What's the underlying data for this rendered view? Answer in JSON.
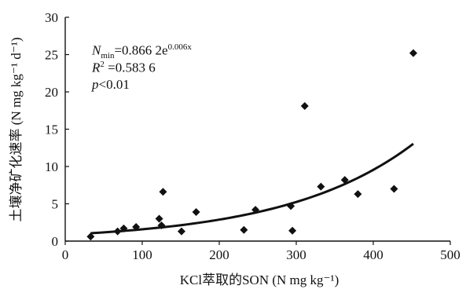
{
  "chart_data": {
    "type": "scatter",
    "title": "",
    "xlabel": "KCl萃取的SON (N mg kg⁻¹)",
    "ylabel": "土壤净矿化速率 (N mg kg⁻¹ d⁻¹)",
    "xlim": [
      0,
      500
    ],
    "ylim": [
      0,
      30
    ],
    "x_ticks": [
      "0",
      "100",
      "200",
      "300",
      "400",
      "500"
    ],
    "y_ticks": [
      "0",
      "5",
      "10",
      "15",
      "20",
      "25",
      "30"
    ],
    "grid": false,
    "legend": "none",
    "points": [
      {
        "x": 33,
        "y": 0.6
      },
      {
        "x": 68,
        "y": 1.3
      },
      {
        "x": 76,
        "y": 1.7
      },
      {
        "x": 92,
        "y": 1.9
      },
      {
        "x": 122,
        "y": 3.0
      },
      {
        "x": 125,
        "y": 2.1
      },
      {
        "x": 127,
        "y": 6.6
      },
      {
        "x": 151,
        "y": 1.3
      },
      {
        "x": 170,
        "y": 3.9
      },
      {
        "x": 232,
        "y": 1.5
      },
      {
        "x": 247,
        "y": 4.2
      },
      {
        "x": 293,
        "y": 4.7
      },
      {
        "x": 295,
        "y": 1.4
      },
      {
        "x": 311,
        "y": 18.1
      },
      {
        "x": 332,
        "y": 7.3
      },
      {
        "x": 363,
        "y": 8.2
      },
      {
        "x": 380,
        "y": 6.3
      },
      {
        "x": 427,
        "y": 7.0
      },
      {
        "x": 452,
        "y": 25.2
      }
    ],
    "fit": {
      "type": "exponential",
      "a": 0.8662,
      "b": 0.006,
      "x_range": [
        33,
        452
      ],
      "color": "#111111"
    },
    "marker_color": "#111111"
  },
  "annotation": {
    "n_sym": "N",
    "n_sub": "min",
    "n_rest": "=0.866 2e",
    "n_exp": "0.006x",
    "r_sym": "R",
    "r_sup": "2",
    "r_rest": " =0.583 6",
    "p_sym": "p",
    "p_rest": "<0.01"
  }
}
